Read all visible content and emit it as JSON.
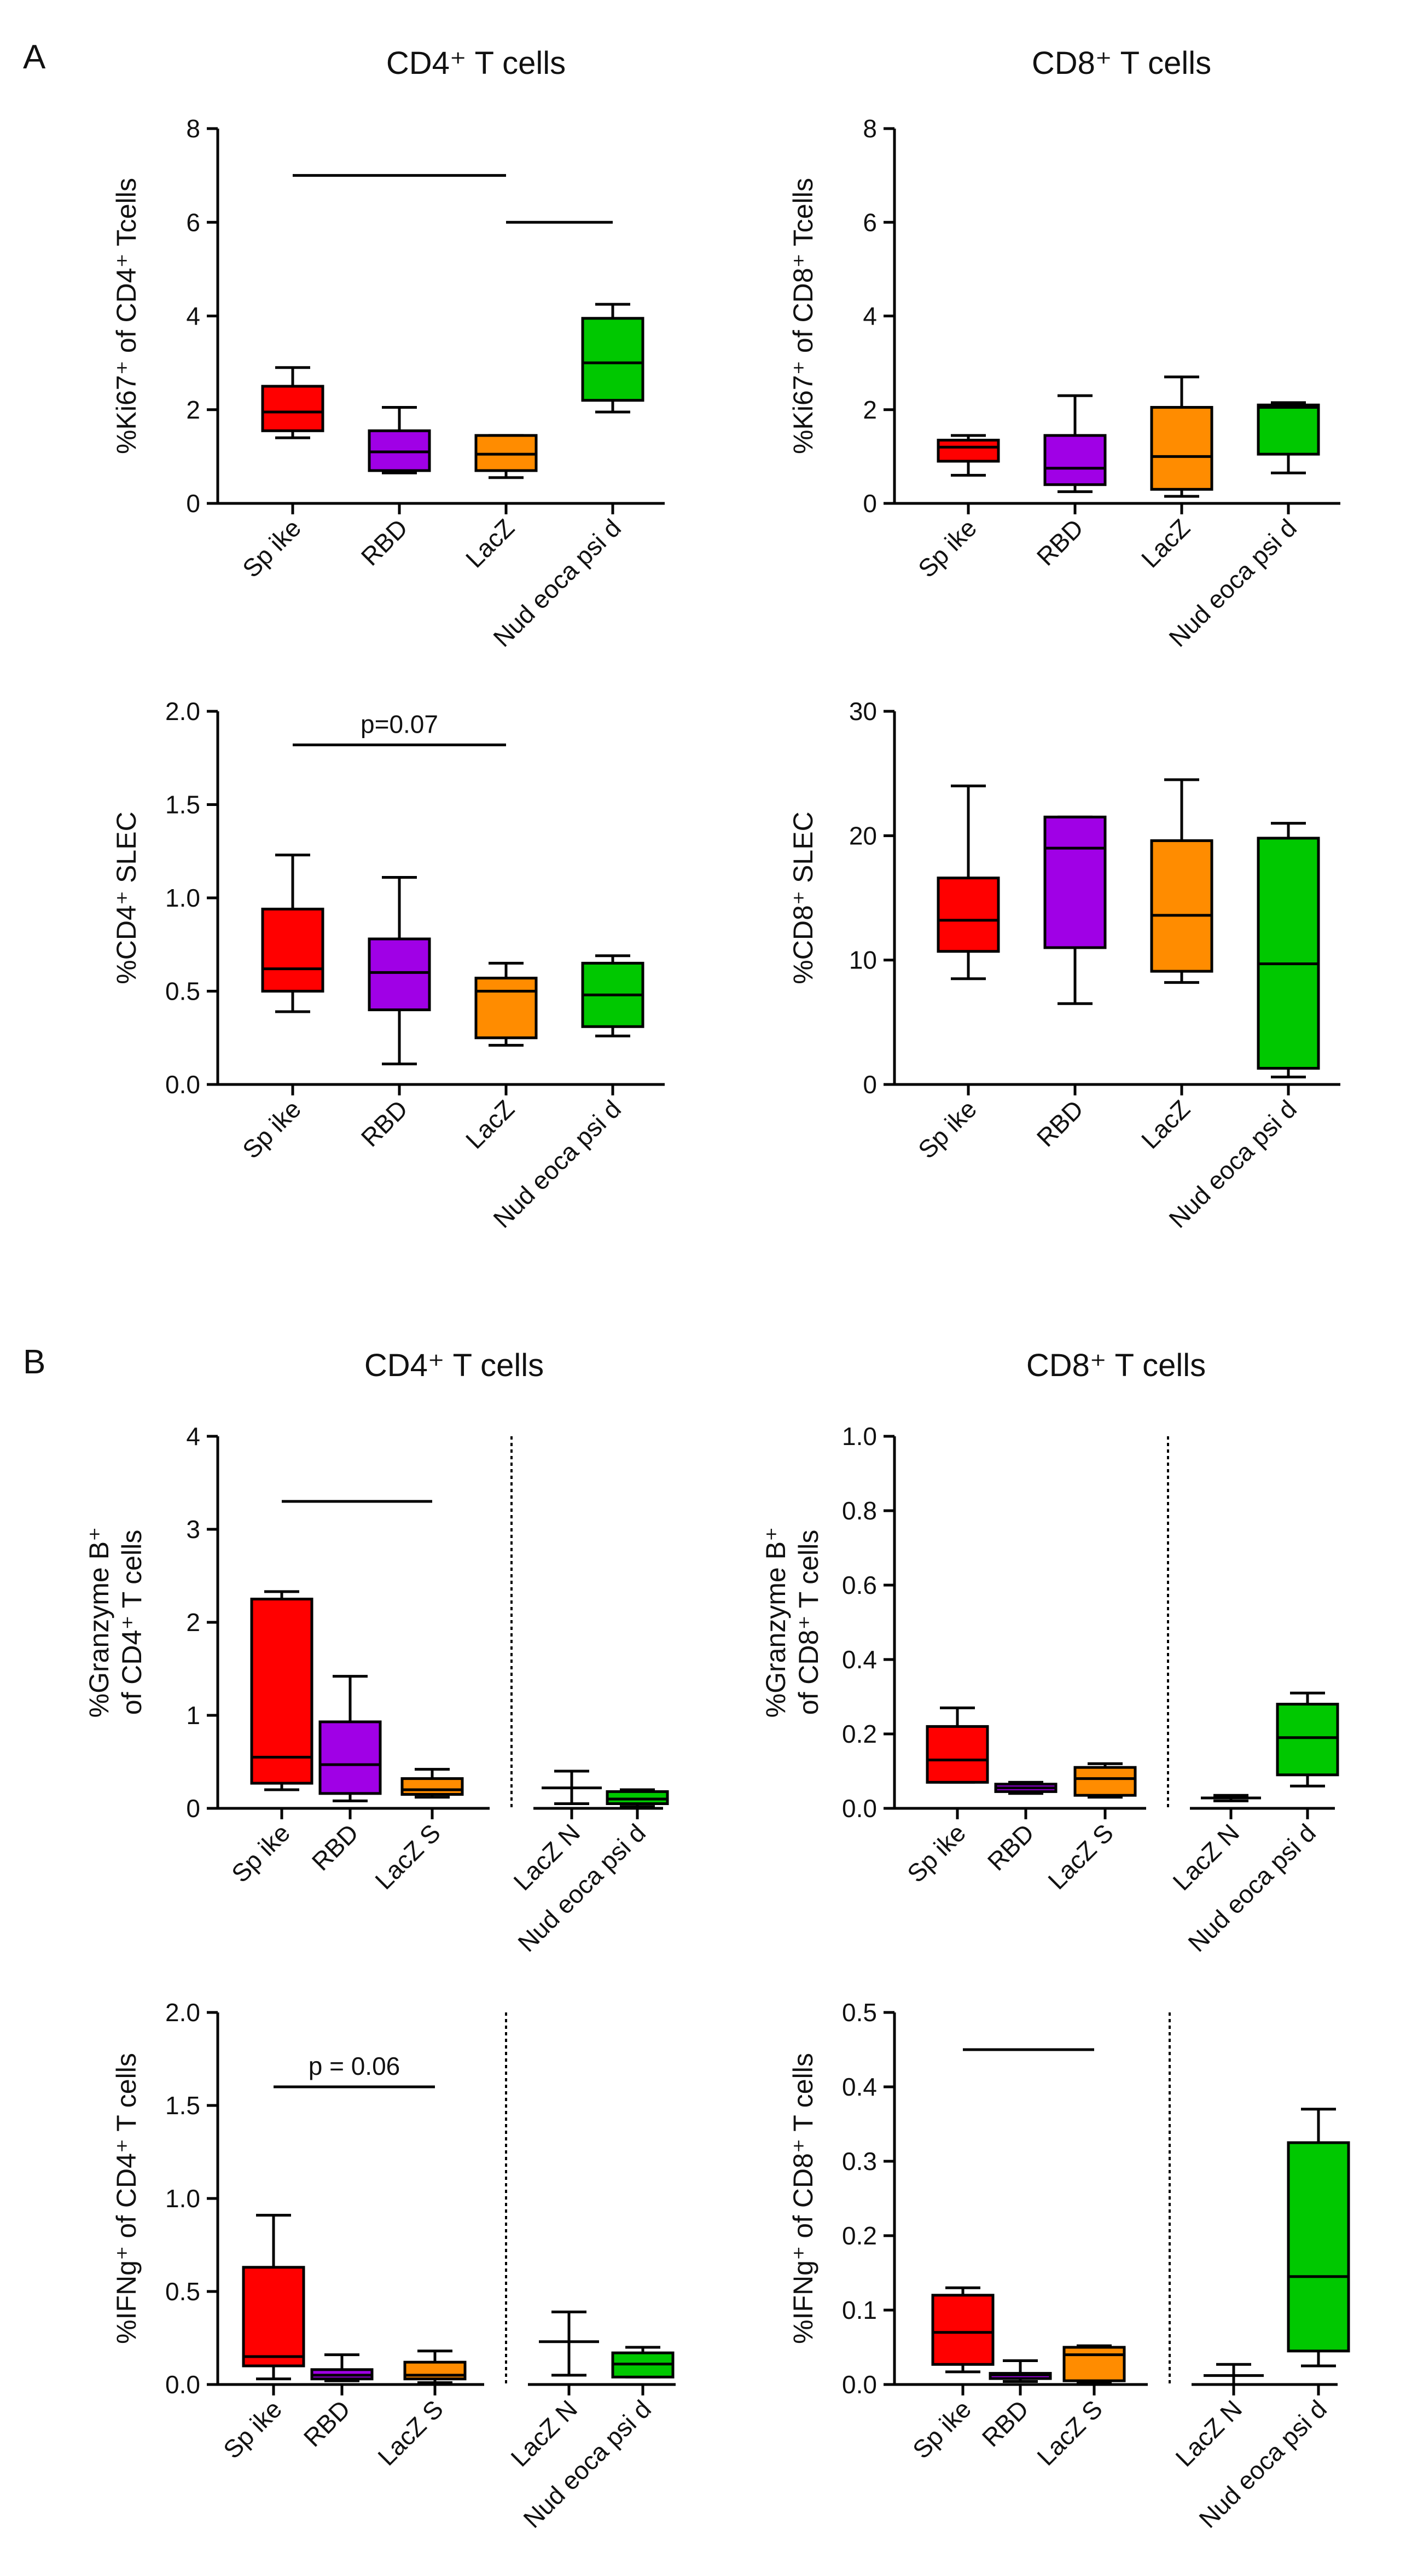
{
  "panel_labels": {
    "a": "A",
    "b": "B"
  },
  "headers": {
    "a_left": "CD4⁺ T cells",
    "a_right": "CD8⁺ T cells",
    "b_left": "CD4⁺ T cells",
    "b_right": "CD8⁺ T cells"
  },
  "colors": {
    "Spike": "#ff0000",
    "RBD": "#a000e6",
    "LacZ": "#ff8c00",
    "LacZ S": "#ff8c00",
    "Nucleocapsid": "#00c800"
  },
  "chart_data": [
    {
      "id": "a1",
      "type": "box",
      "ylabel": "%Ki67⁺ of CD4⁺ Tcells",
      "categories": [
        "Spike",
        "RBD",
        "LacZ",
        "Nucleocapsid"
      ],
      "tick_labels": [
        "Sp ike",
        "RBD",
        "LacZ",
        "Nud eoca psi d"
      ],
      "ylim": [
        0,
        8
      ],
      "yticks": [
        0,
        2,
        4,
        6,
        8
      ],
      "tick_format": "int",
      "boxes": [
        {
          "min": 1.4,
          "q1": 1.55,
          "median": 1.95,
          "q3": 2.5,
          "max": 2.9
        },
        {
          "min": 0.65,
          "q1": 0.7,
          "median": 1.1,
          "q3": 1.55,
          "max": 2.05
        },
        {
          "min": 0.55,
          "q1": 0.7,
          "median": 1.05,
          "q3": 1.45,
          "max": 1.45
        },
        {
          "min": 1.95,
          "q1": 2.2,
          "median": 3.0,
          "q3": 3.95,
          "max": 4.25
        }
      ],
      "brackets": [
        {
          "from": 0,
          "to": 2,
          "y": 7.0,
          "label": ""
        },
        {
          "from": 2,
          "to": 3,
          "y": 6.0,
          "label": ""
        }
      ]
    },
    {
      "id": "a2",
      "type": "box",
      "ylabel": "%Ki67⁺ of CD8⁺ Tcells",
      "categories": [
        "Spike",
        "RBD",
        "LacZ",
        "Nucleocapsid"
      ],
      "tick_labels": [
        "Sp ike",
        "RBD",
        "LacZ",
        "Nud eoca psi d"
      ],
      "ylim": [
        0,
        8
      ],
      "yticks": [
        0,
        2,
        4,
        6,
        8
      ],
      "tick_format": "int",
      "boxes": [
        {
          "min": 0.6,
          "q1": 0.9,
          "median": 1.2,
          "q3": 1.35,
          "max": 1.45
        },
        {
          "min": 0.25,
          "q1": 0.4,
          "median": 0.75,
          "q3": 1.45,
          "max": 2.3
        },
        {
          "min": 0.15,
          "q1": 0.3,
          "median": 1.0,
          "q3": 2.05,
          "max": 2.7
        },
        {
          "min": 0.65,
          "q1": 1.05,
          "median": 2.05,
          "q3": 2.1,
          "max": 2.15
        }
      ],
      "brackets": []
    },
    {
      "id": "a3",
      "type": "box",
      "ylabel": "%CD4⁺ SLEC",
      "categories": [
        "Spike",
        "RBD",
        "LacZ",
        "Nucleocapsid"
      ],
      "tick_labels": [
        "Sp ike",
        "RBD",
        "LacZ",
        "Nud eoca psi d"
      ],
      "ylim": [
        0,
        2
      ],
      "yticks": [
        0,
        0.5,
        1,
        1.5,
        2
      ],
      "tick_format": "1",
      "boxes": [
        {
          "min": 0.39,
          "q1": 0.5,
          "median": 0.62,
          "q3": 0.94,
          "max": 1.23
        },
        {
          "min": 0.11,
          "q1": 0.4,
          "median": 0.6,
          "q3": 0.78,
          "max": 1.11
        },
        {
          "min": 0.21,
          "q1": 0.25,
          "median": 0.5,
          "q3": 0.57,
          "max": 0.65
        },
        {
          "min": 0.26,
          "q1": 0.31,
          "median": 0.48,
          "q3": 0.65,
          "max": 0.69
        }
      ],
      "brackets": [
        {
          "from": 0,
          "to": 2,
          "y": 1.82,
          "label": "p=0.07"
        }
      ]
    },
    {
      "id": "a4",
      "type": "box",
      "ylabel": "%CD8⁺ SLEC",
      "categories": [
        "Spike",
        "RBD",
        "LacZ",
        "Nucleocapsid"
      ],
      "tick_labels": [
        "Sp ike",
        "RBD",
        "LacZ",
        "Nud eoca psi d"
      ],
      "ylim": [
        0,
        30
      ],
      "yticks": [
        0,
        10,
        20,
        30
      ],
      "tick_format": "int",
      "boxes": [
        {
          "min": 8.5,
          "q1": 10.7,
          "median": 13.2,
          "q3": 16.6,
          "max": 24
        },
        {
          "min": 6.5,
          "q1": 11.0,
          "median": 19.0,
          "q3": 21.5,
          "max": 21.5
        },
        {
          "min": 8.2,
          "q1": 9.1,
          "median": 13.6,
          "q3": 19.6,
          "max": 24.5
        },
        {
          "min": 0.6,
          "q1": 1.3,
          "median": 9.7,
          "q3": 19.8,
          "max": 21
        }
      ],
      "brackets": []
    },
    {
      "id": "b1",
      "type": "box",
      "ylabel": "%Granzyme B⁺",
      "ylabel2": "of CD4⁺ T cells",
      "categories": [
        "Spike",
        "RBD",
        "LacZ S",
        "LacZ N",
        "Nucleocapsid"
      ],
      "tick_labels": [
        "Sp ike",
        "RBD",
        "LacZ S",
        "LacZ N",
        "Nud eoca psi d"
      ],
      "ylim": [
        0,
        4
      ],
      "yticks": [
        0,
        1,
        2,
        3,
        4
      ],
      "tick_format": "int",
      "boxes": [
        {
          "min": 0.2,
          "q1": 0.27,
          "median": 0.55,
          "q3": 2.25,
          "max": 2.33
        },
        {
          "min": 0.08,
          "q1": 0.16,
          "median": 0.47,
          "q3": 0.93,
          "max": 1.42
        },
        {
          "min": 0.12,
          "q1": 0.15,
          "median": 0.2,
          "q3": 0.32,
          "max": 0.42
        },
        {
          "min": 0.05,
          "q1": 0.22,
          "median": 0.22,
          "q3": 0.22,
          "max": 0.4
        },
        {
          "min": 0.02,
          "q1": 0.05,
          "median": 0.1,
          "q3": 0.18,
          "max": 0.2
        }
      ],
      "divider_after": 2,
      "brackets": [
        {
          "from": 0,
          "to": 2,
          "y": 3.3,
          "label": ""
        }
      ]
    },
    {
      "id": "b2",
      "type": "box",
      "ylabel": "%Granzyme B⁺",
      "ylabel2": "of CD8⁺ T cells",
      "categories": [
        "Spike",
        "RBD",
        "LacZ S",
        "LacZ N",
        "Nucleocapsid"
      ],
      "tick_labels": [
        "Sp ike",
        "RBD",
        "LacZ S",
        "LacZ N",
        "Nud eoca psi d"
      ],
      "ylim": [
        0,
        1.0
      ],
      "yticks": [
        0,
        0.2,
        0.4,
        0.6,
        0.8,
        1.0
      ],
      "tick_format": "1",
      "boxes": [
        {
          "min": 0.07,
          "q1": 0.07,
          "median": 0.13,
          "q3": 0.22,
          "max": 0.27
        },
        {
          "min": 0.04,
          "q1": 0.045,
          "median": 0.055,
          "q3": 0.065,
          "max": 0.07
        },
        {
          "min": 0.03,
          "q1": 0.035,
          "median": 0.08,
          "q3": 0.11,
          "max": 0.12
        },
        {
          "min": 0.02,
          "q1": 0.028,
          "median": 0.028,
          "q3": 0.028,
          "max": 0.035
        },
        {
          "min": 0.06,
          "q1": 0.09,
          "median": 0.19,
          "q3": 0.28,
          "max": 0.31
        }
      ],
      "divider_after": 2,
      "brackets": []
    },
    {
      "id": "b3",
      "type": "box",
      "ylabel": "%IFNg⁺ of CD4⁺ T cells",
      "categories": [
        "Spike",
        "RBD",
        "LacZ S",
        "LacZ N",
        "Nucleocapsid"
      ],
      "tick_labels": [
        "Sp ike",
        "RBD",
        "LacZ S",
        "LacZ N",
        "Nud eoca psi d"
      ],
      "ylim": [
        0,
        2
      ],
      "yticks": [
        0,
        0.5,
        1,
        1.5,
        2
      ],
      "tick_format": "1",
      "boxes": [
        {
          "min": 0.03,
          "q1": 0.1,
          "median": 0.15,
          "q3": 0.63,
          "max": 0.91
        },
        {
          "min": 0.02,
          "q1": 0.03,
          "median": 0.05,
          "q3": 0.08,
          "max": 0.16
        },
        {
          "min": 0.01,
          "q1": 0.03,
          "median": 0.05,
          "q3": 0.12,
          "max": 0.18
        },
        {
          "min": 0.05,
          "q1": 0.23,
          "median": 0.23,
          "q3": 0.23,
          "max": 0.39
        },
        {
          "min": 0.04,
          "q1": 0.04,
          "median": 0.11,
          "q3": 0.17,
          "max": 0.2
        }
      ],
      "divider_after": 2,
      "brackets": [
        {
          "from": 0,
          "to": 2,
          "y": 1.6,
          "label": "p = 0.06"
        }
      ]
    },
    {
      "id": "b4",
      "type": "box",
      "ylabel": "%IFNg⁺ of CD8⁺ T cells",
      "categories": [
        "Spike",
        "RBD",
        "LacZ S",
        "LacZ N",
        "Nucleocapsid"
      ],
      "tick_labels": [
        "Sp ike",
        "RBD",
        "LacZ S",
        "LacZ N",
        "Nud eoca psi d"
      ],
      "ylim": [
        0,
        0.5
      ],
      "yticks": [
        0,
        0.1,
        0.2,
        0.3,
        0.4,
        0.5
      ],
      "tick_format": "1",
      "boxes": [
        {
          "min": 0.017,
          "q1": 0.027,
          "median": 0.07,
          "q3": 0.12,
          "max": 0.13
        },
        {
          "min": 0.004,
          "q1": 0.008,
          "median": 0.013,
          "q3": 0.015,
          "max": 0.032
        },
        {
          "min": 0.003,
          "q1": 0.005,
          "median": 0.04,
          "q3": 0.05,
          "max": 0.052
        },
        {
          "min": 0.0,
          "q1": 0.012,
          "median": 0.012,
          "q3": 0.012,
          "max": 0.027
        },
        {
          "min": 0.025,
          "q1": 0.045,
          "median": 0.145,
          "q3": 0.325,
          "max": 0.37
        }
      ],
      "divider_after": 2,
      "brackets": [
        {
          "from": 0,
          "to": 2,
          "y": 0.45,
          "label": ""
        }
      ]
    }
  ]
}
